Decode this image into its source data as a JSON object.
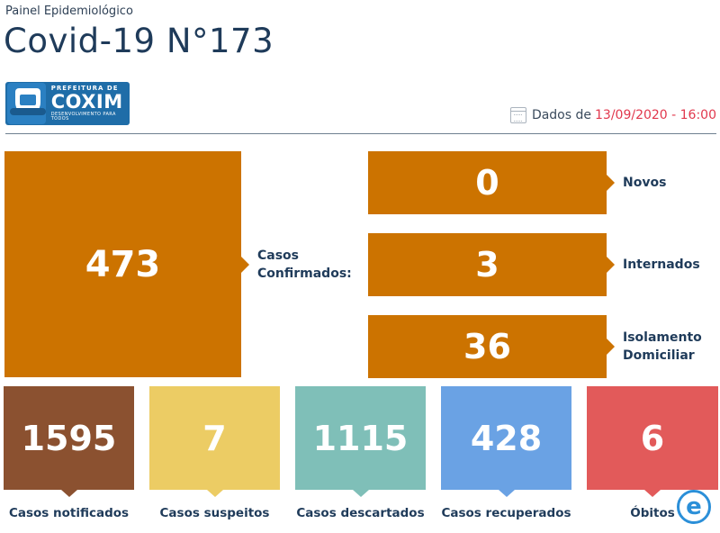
{
  "header": {
    "subtitle": "Painel Epidemiológico",
    "title": "Covid-19 N°173"
  },
  "logo": {
    "line1": "PREFEITURA DE",
    "line2": "COXIM",
    "line3": "DESENVOLVIMENTO PARA TODOS"
  },
  "date": {
    "prefix": "Dados de",
    "value": "13/09/2020 - 16:00"
  },
  "confirmed": {
    "value": "473",
    "label_line1": "Casos",
    "label_line2": "Confirmados:"
  },
  "breakdown": [
    {
      "value": "0",
      "label_line1": "Novos",
      "label_line2": ""
    },
    {
      "value": "3",
      "label_line1": "Internados",
      "label_line2": ""
    },
    {
      "value": "36",
      "label_line1": "Isolamento",
      "label_line2": "Domiciliar"
    }
  ],
  "stats": [
    {
      "value": "1595",
      "label": "Casos notificados",
      "color": "#8b5130"
    },
    {
      "value": "7",
      "label": "Casos suspeitos",
      "color": "#eccc64"
    },
    {
      "value": "1115",
      "label": "Casos descartados",
      "color": "#7fbfb8"
    },
    {
      "value": "428",
      "label": "Casos recuperados",
      "color": "#6aa2e4"
    },
    {
      "value": "6",
      "label": "Óbitos",
      "color": "#e25a5a"
    }
  ],
  "colors": {
    "primary_orange": "#cc7300",
    "date_red": "#e1384d",
    "text_navy": "#1f3b5a"
  },
  "watermark": {
    "glyph": "e"
  }
}
